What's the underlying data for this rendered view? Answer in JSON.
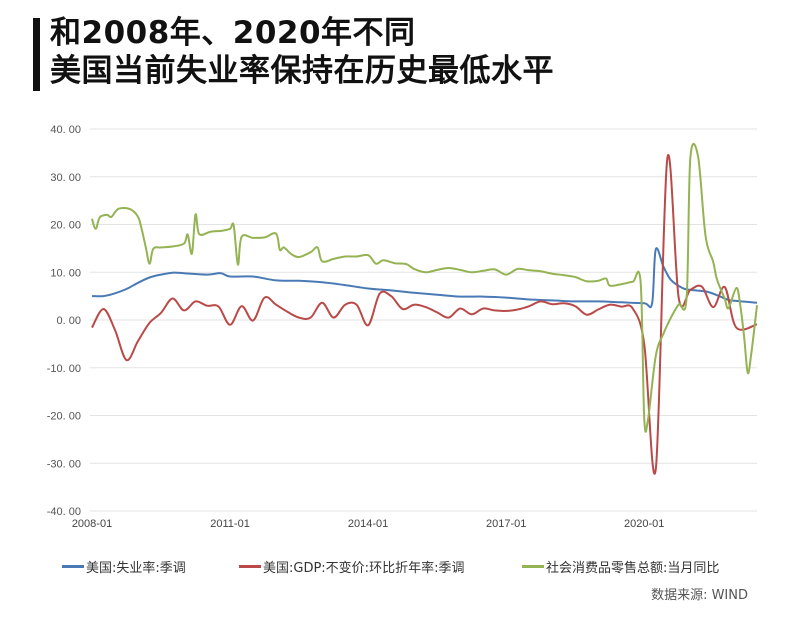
{
  "title": {
    "line1": "和2008年、2020年不同",
    "line2": "美国当前失业率保持在历史最低水平"
  },
  "legend": {
    "items": [
      {
        "label": "美国:失业率:季调",
        "color": "#4a7ab5"
      },
      {
        "label": "美国:GDP:不变价:环比折年率:季调",
        "color": "#b94a48"
      },
      {
        "label": "社会消费品零售总额:当月同比",
        "color": "#94b353"
      }
    ]
  },
  "source": "数据来源:  WIND",
  "chart_data": {
    "type": "line",
    "title": "和2008年、2020年不同 美国当前失业率保持在历史最低水平",
    "xlabel": "",
    "ylabel": "",
    "ylim": [
      -40,
      40
    ],
    "yticks": [
      "40.00",
      "30.00",
      "20.00",
      "10.00",
      "0.00",
      "-10.00",
      "-20.00",
      "-30.00",
      "-40.00"
    ],
    "xticks": [
      "2008-01",
      "2011-01",
      "2014-01",
      "2017-01",
      "2020-01"
    ],
    "xrange": [
      2008.0,
      2022.45
    ],
    "grid": "horizontal",
    "legend_position": "bottom",
    "series": [
      {
        "name": "美国:失业率:季调",
        "color": "#4a7ab5",
        "points": [
          [
            2008.0,
            5.0
          ],
          [
            2008.25,
            5.0
          ],
          [
            2008.5,
            5.6
          ],
          [
            2008.75,
            6.5
          ],
          [
            2009.0,
            7.8
          ],
          [
            2009.25,
            8.9
          ],
          [
            2009.5,
            9.5
          ],
          [
            2009.75,
            9.9
          ],
          [
            2010.0,
            9.8
          ],
          [
            2010.5,
            9.5
          ],
          [
            2010.8,
            9.8
          ],
          [
            2011.0,
            9.1
          ],
          [
            2011.5,
            9.1
          ],
          [
            2012.0,
            8.3
          ],
          [
            2012.5,
            8.2
          ],
          [
            2013.0,
            7.9
          ],
          [
            2013.5,
            7.3
          ],
          [
            2014.0,
            6.6
          ],
          [
            2014.5,
            6.2
          ],
          [
            2015.0,
            5.7
          ],
          [
            2015.5,
            5.3
          ],
          [
            2016.0,
            4.9
          ],
          [
            2016.5,
            4.9
          ],
          [
            2017.0,
            4.7
          ],
          [
            2017.5,
            4.3
          ],
          [
            2018.0,
            4.1
          ],
          [
            2018.5,
            3.9
          ],
          [
            2019.0,
            3.9
          ],
          [
            2019.5,
            3.7
          ],
          [
            2020.0,
            3.5
          ],
          [
            2020.17,
            3.5
          ],
          [
            2020.25,
            14.8
          ],
          [
            2020.42,
            11.1
          ],
          [
            2020.58,
            8.4
          ],
          [
            2020.83,
            6.7
          ],
          [
            2021.0,
            6.3
          ],
          [
            2021.33,
            6.0
          ],
          [
            2021.58,
            5.2
          ],
          [
            2021.83,
            4.2
          ],
          [
            2022.0,
            4.0
          ],
          [
            2022.45,
            3.6
          ]
        ]
      },
      {
        "name": "美国:GDP:不变价:环比折年率:季调",
        "color": "#b94a48",
        "points": [
          [
            2008.0,
            -1.6
          ],
          [
            2008.25,
            2.3
          ],
          [
            2008.5,
            -2.1
          ],
          [
            2008.75,
            -8.4
          ],
          [
            2009.0,
            -4.4
          ],
          [
            2009.25,
            -0.6
          ],
          [
            2009.5,
            1.5
          ],
          [
            2009.75,
            4.5
          ],
          [
            2010.0,
            2.0
          ],
          [
            2010.25,
            3.9
          ],
          [
            2010.5,
            3.0
          ],
          [
            2010.75,
            2.8
          ],
          [
            2011.0,
            -1.0
          ],
          [
            2011.25,
            2.9
          ],
          [
            2011.5,
            -0.1
          ],
          [
            2011.75,
            4.7
          ],
          [
            2012.0,
            3.2
          ],
          [
            2012.25,
            1.7
          ],
          [
            2012.5,
            0.5
          ],
          [
            2012.75,
            0.5
          ],
          [
            2013.0,
            3.6
          ],
          [
            2013.25,
            0.5
          ],
          [
            2013.5,
            3.2
          ],
          [
            2013.75,
            3.2
          ],
          [
            2014.0,
            -1.1
          ],
          [
            2014.25,
            5.5
          ],
          [
            2014.5,
            5.0
          ],
          [
            2014.75,
            2.3
          ],
          [
            2015.0,
            3.2
          ],
          [
            2015.25,
            2.7
          ],
          [
            2015.5,
            1.6
          ],
          [
            2015.75,
            0.5
          ],
          [
            2016.0,
            2.4
          ],
          [
            2016.25,
            1.2
          ],
          [
            2016.5,
            2.4
          ],
          [
            2016.75,
            2.0
          ],
          [
            2017.0,
            1.9
          ],
          [
            2017.25,
            2.2
          ],
          [
            2017.5,
            2.9
          ],
          [
            2017.75,
            3.9
          ],
          [
            2018.0,
            3.3
          ],
          [
            2018.25,
            3.5
          ],
          [
            2018.5,
            2.9
          ],
          [
            2018.75,
            1.1
          ],
          [
            2019.0,
            2.2
          ],
          [
            2019.25,
            3.2
          ],
          [
            2019.5,
            2.8
          ],
          [
            2019.75,
            2.4
          ],
          [
            2020.0,
            -5.0
          ],
          [
            2020.25,
            -31.2
          ],
          [
            2020.5,
            33.8
          ],
          [
            2020.75,
            4.5
          ],
          [
            2021.0,
            6.3
          ],
          [
            2021.25,
            7.0
          ],
          [
            2021.5,
            2.7
          ],
          [
            2021.75,
            6.9
          ],
          [
            2022.0,
            -1.6
          ],
          [
            2022.45,
            -0.9
          ]
        ]
      },
      {
        "name": "社会消费品零售总额:当月同比",
        "color": "#94b353",
        "points": [
          [
            2008.0,
            21.2
          ],
          [
            2008.08,
            19.1
          ],
          [
            2008.17,
            21.5
          ],
          [
            2008.33,
            22.0
          ],
          [
            2008.42,
            21.6
          ],
          [
            2008.58,
            23.3
          ],
          [
            2008.83,
            23.2
          ],
          [
            2009.0,
            21.6
          ],
          [
            2009.08,
            19.0
          ],
          [
            2009.17,
            15.2
          ],
          [
            2009.25,
            11.8
          ],
          [
            2009.33,
            14.9
          ],
          [
            2009.5,
            15.2
          ],
          [
            2009.75,
            15.4
          ],
          [
            2010.0,
            16.0
          ],
          [
            2010.08,
            17.9
          ],
          [
            2010.17,
            13.9
          ],
          [
            2010.25,
            22.1
          ],
          [
            2010.33,
            18.0
          ],
          [
            2010.58,
            18.5
          ],
          [
            2010.83,
            18.7
          ],
          [
            2011.0,
            19.1
          ],
          [
            2011.08,
            19.8
          ],
          [
            2011.17,
            11.6
          ],
          [
            2011.25,
            17.4
          ],
          [
            2011.5,
            17.2
          ],
          [
            2011.75,
            17.3
          ],
          [
            2012.0,
            18.1
          ],
          [
            2012.08,
            14.7
          ],
          [
            2012.17,
            15.2
          ],
          [
            2012.33,
            13.8
          ],
          [
            2012.5,
            13.2
          ],
          [
            2012.75,
            14.2
          ],
          [
            2012.9,
            15.2
          ],
          [
            2013.0,
            12.3
          ],
          [
            2013.25,
            12.8
          ],
          [
            2013.5,
            13.3
          ],
          [
            2013.75,
            13.3
          ],
          [
            2014.0,
            13.6
          ],
          [
            2014.17,
            11.8
          ],
          [
            2014.33,
            12.5
          ],
          [
            2014.58,
            11.9
          ],
          [
            2014.83,
            11.7
          ],
          [
            2015.0,
            10.7
          ],
          [
            2015.25,
            10.0
          ],
          [
            2015.5,
            10.5
          ],
          [
            2015.75,
            10.9
          ],
          [
            2016.0,
            10.5
          ],
          [
            2016.25,
            10.0
          ],
          [
            2016.5,
            10.3
          ],
          [
            2016.75,
            10.6
          ],
          [
            2017.0,
            9.5
          ],
          [
            2017.25,
            10.7
          ],
          [
            2017.5,
            10.4
          ],
          [
            2017.75,
            10.2
          ],
          [
            2018.0,
            9.7
          ],
          [
            2018.25,
            9.4
          ],
          [
            2018.5,
            9.0
          ],
          [
            2018.75,
            8.1
          ],
          [
            2019.0,
            8.2
          ],
          [
            2019.17,
            8.7
          ],
          [
            2019.25,
            7.2
          ],
          [
            2019.5,
            7.5
          ],
          [
            2019.75,
            8.0
          ],
          [
            2019.92,
            8.0
          ],
          [
            2020.0,
            -20.5
          ],
          [
            2020.08,
            -21.0
          ],
          [
            2020.25,
            -7.5
          ],
          [
            2020.42,
            -2.8
          ],
          [
            2020.58,
            0.5
          ],
          [
            2020.75,
            3.3
          ],
          [
            2020.92,
            4.6
          ],
          [
            2021.0,
            33.8
          ],
          [
            2021.17,
            34.2
          ],
          [
            2021.33,
            17.7
          ],
          [
            2021.5,
            12.1
          ],
          [
            2021.58,
            8.5
          ],
          [
            2021.75,
            4.4
          ],
          [
            2021.83,
            2.5
          ],
          [
            2022.0,
            6.7
          ],
          [
            2022.08,
            3.5
          ],
          [
            2022.17,
            -3.5
          ],
          [
            2022.25,
            -11.1
          ],
          [
            2022.33,
            -6.7
          ],
          [
            2022.45,
            3.1
          ]
        ]
      }
    ]
  }
}
